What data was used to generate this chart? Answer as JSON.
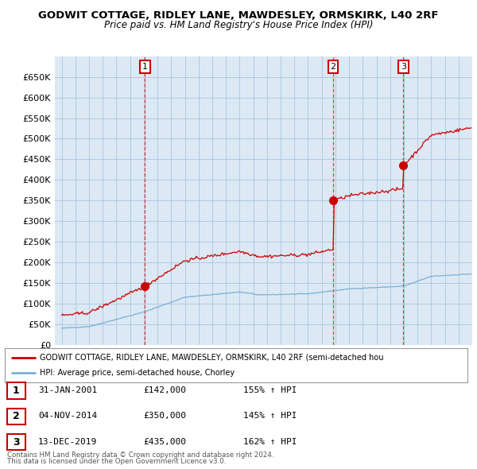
{
  "title": "GODWIT COTTAGE, RIDLEY LANE, MAWDESLEY, ORMSKIRK, L40 2RF",
  "subtitle": "Price paid vs. HM Land Registry's House Price Index (HPI)",
  "red_label": "GODWIT COTTAGE, RIDLEY LANE, MAWDESLEY, ORMSKIRK, L40 2RF (semi-detached hou",
  "blue_label": "HPI: Average price, semi-detached house, Chorley",
  "footer1": "Contains HM Land Registry data © Crown copyright and database right 2024.",
  "footer2": "This data is licensed under the Open Government Licence v3.0.",
  "transactions": [
    {
      "num": 1,
      "date": "31-JAN-2001",
      "price": "£142,000",
      "pct": "155% ↑ HPI"
    },
    {
      "num": 2,
      "date": "04-NOV-2014",
      "price": "£350,000",
      "pct": "145% ↑ HPI"
    },
    {
      "num": 3,
      "date": "13-DEC-2019",
      "price": "£435,000",
      "pct": "162% ↑ HPI"
    }
  ],
  "transaction_years": [
    2001.08,
    2014.84,
    2019.96
  ],
  "transaction_prices": [
    142000,
    350000,
    435000
  ],
  "ylim": [
    0,
    700000
  ],
  "yticks": [
    0,
    50000,
    100000,
    150000,
    200000,
    250000,
    300000,
    350000,
    400000,
    450000,
    500000,
    550000,
    600000,
    650000
  ],
  "xlim_left": 1994.5,
  "xlim_right": 2025.0,
  "background_color": "#ffffff",
  "plot_bg_color": "#dce9f5",
  "grid_color": "#b0c8e0",
  "red_color": "#cc0000",
  "blue_color": "#7bafd4"
}
